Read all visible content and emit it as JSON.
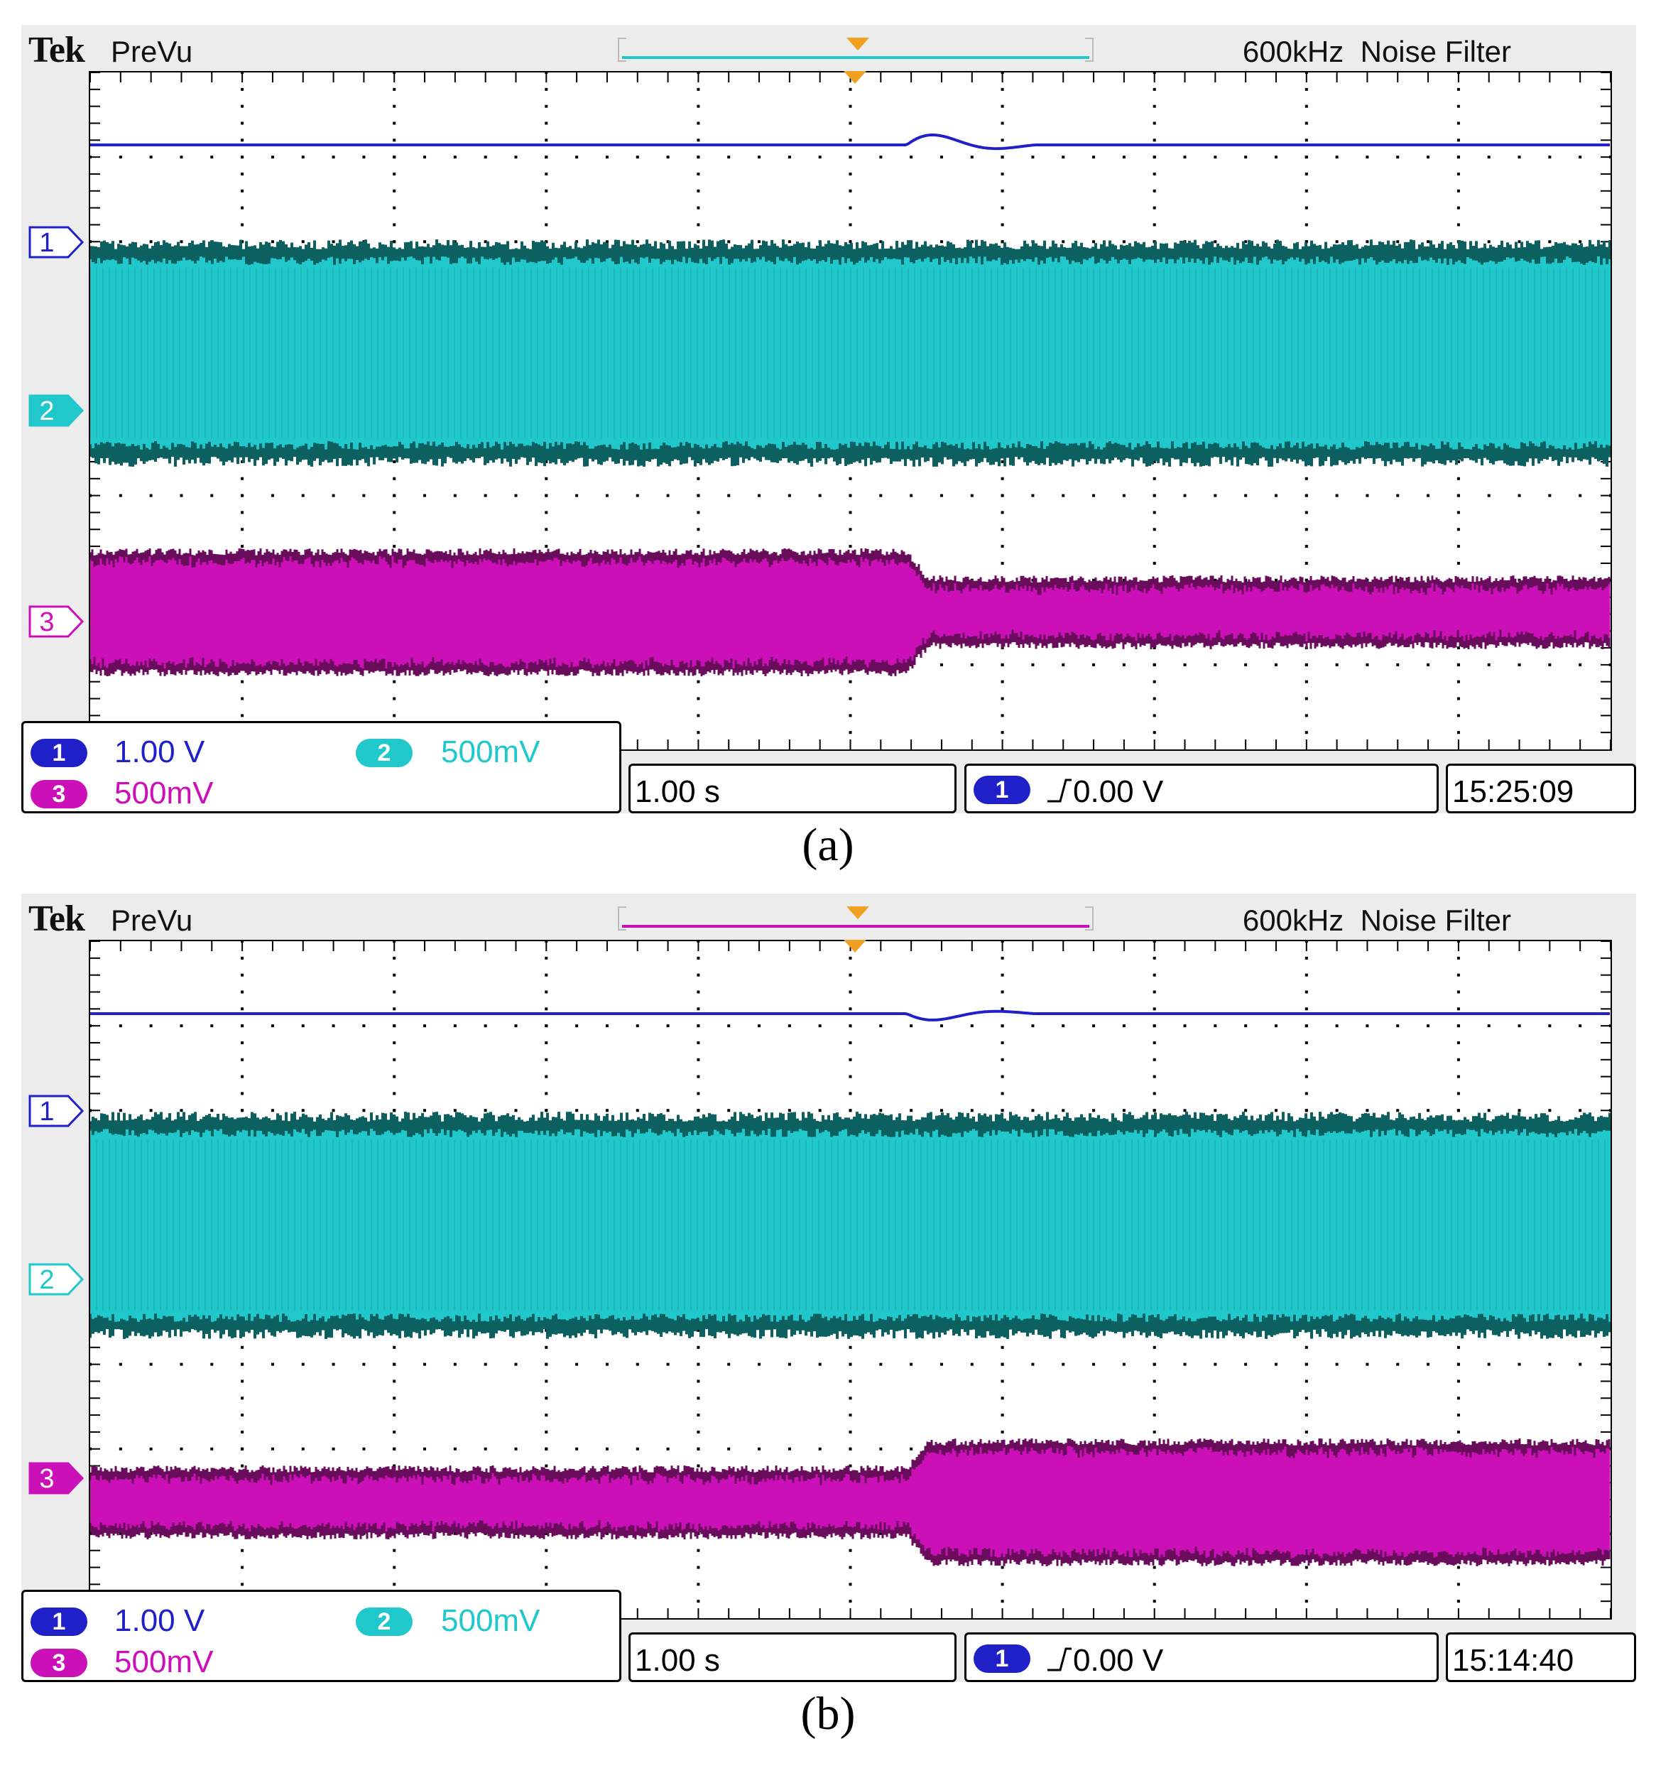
{
  "colors": {
    "ch1": "#2020c8",
    "ch2": "#20c8cc",
    "ch2_dark": "#0c6060",
    "ch3": "#cc10b8",
    "ch3_dark": "#6a0c5c",
    "trigger_marker": "#f0a020"
  },
  "panels": [
    {
      "id": "a",
      "brand": "Tek",
      "mode": "PreVu",
      "acq_info": "600kHz  Noise Filter",
      "record_bar_color": "#20c8cc",
      "markers": [
        {
          "label": "1",
          "style": "outline",
          "color": "#2020c8"
        },
        {
          "label": "2",
          "style": "filled",
          "color": "#20c8cc"
        },
        {
          "label": "3",
          "style": "outline",
          "color": "#cc10b8"
        }
      ],
      "ch1_scale": "1.00 V",
      "ch2_scale": "500mV",
      "ch3_scale": "500mV",
      "ch1_label": "1",
      "ch2_label": "2",
      "ch3_label": "3",
      "timebase": "1.00 s",
      "trigger_source": "1",
      "trigger_level": "0.00 V",
      "clock": "15:25:09",
      "caption": "(a)",
      "ch3_before": "large",
      "ch3_after": "small"
    },
    {
      "id": "b",
      "brand": "Tek",
      "mode": "PreVu",
      "acq_info": "600kHz  Noise Filter",
      "record_bar_color": "#cc10b8",
      "markers": [
        {
          "label": "1",
          "style": "outline",
          "color": "#2020c8"
        },
        {
          "label": "2",
          "style": "outline",
          "color": "#20c8cc"
        },
        {
          "label": "3",
          "style": "filled",
          "color": "#cc10b8"
        }
      ],
      "ch1_scale": "1.00 V",
      "ch2_scale": "500mV",
      "ch3_scale": "500mV",
      "ch1_label": "1",
      "ch2_label": "2",
      "ch3_label": "3",
      "timebase": "1.00 s",
      "trigger_source": "1",
      "trigger_level": "0.00 V",
      "clock": "15:14:40",
      "caption": "(b)",
      "ch3_before": "small",
      "ch3_after": "large"
    }
  ]
}
